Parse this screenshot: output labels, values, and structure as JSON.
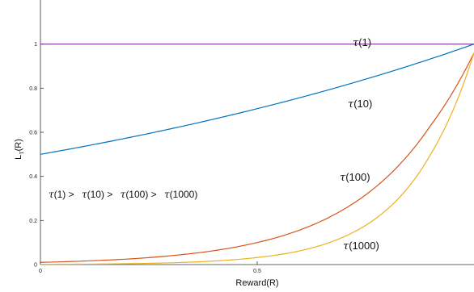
{
  "chart_data": {
    "type": "line",
    "xlabel": "Reward(R)",
    "ylabel": "L",
    "ylabel_sub": "τ",
    "ylabel_suffix": "(R)",
    "xlim": [
      0,
      1
    ],
    "ylim": [
      0,
      1.2
    ],
    "x_ticks": [
      {
        "value": 0,
        "label": "0"
      },
      {
        "value": 0.5,
        "label": "0.5"
      }
    ],
    "y_ticks": [
      {
        "value": 0,
        "label": "0"
      },
      {
        "value": 0.2,
        "label": "0.2"
      },
      {
        "value": 0.4,
        "label": "0.4"
      },
      {
        "value": 0.6,
        "label": "0.6"
      },
      {
        "value": 0.8,
        "label": "0.8"
      },
      {
        "value": 1,
        "label": "1"
      }
    ],
    "grid": false,
    "series": [
      {
        "name": "τ(1)",
        "tau": 1,
        "color": "#7E2F8E",
        "x": [
          0,
          0.1,
          0.2,
          0.3,
          0.4,
          0.5,
          0.6,
          0.7,
          0.8,
          0.9,
          1
        ],
        "y": [
          1,
          1,
          1,
          1,
          1,
          1,
          1,
          1,
          1,
          1,
          1
        ]
      },
      {
        "name": "τ(10)",
        "tau": 10,
        "color": "#0072BD",
        "x": [
          0,
          0.1,
          0.2,
          0.3,
          0.4,
          0.5,
          0.6,
          0.7,
          0.8,
          0.9,
          1
        ],
        "y": [
          0.5,
          0.535,
          0.573,
          0.614,
          0.659,
          0.707,
          0.758,
          0.812,
          0.871,
          0.933,
          1
        ]
      },
      {
        "name": "τ(100)",
        "tau": 100,
        "color": "#D95319",
        "x": [
          0,
          0.1,
          0.2,
          0.3,
          0.4,
          0.5,
          0.6,
          0.7,
          0.8,
          0.9,
          1
        ],
        "y": [
          0.01,
          0.016,
          0.025,
          0.04,
          0.063,
          0.1,
          0.158,
          0.251,
          0.398,
          0.631,
          0.96
        ]
      },
      {
        "name": "τ(1000)",
        "tau": 1000,
        "color": "#EDB120",
        "x": [
          0,
          0.1,
          0.2,
          0.3,
          0.4,
          0.5,
          0.6,
          0.7,
          0.8,
          0.9,
          1
        ],
        "y": [
          0.001,
          0.002,
          0.004,
          0.008,
          0.016,
          0.032,
          0.063,
          0.126,
          0.251,
          0.5,
          0.96
        ]
      }
    ],
    "annotations": {
      "tau1": {
        "sym": "τ",
        "text": "(1)"
      },
      "tau10": {
        "sym": "τ",
        "text": "(10)"
      },
      "tau100": {
        "sym": "τ",
        "text": "(100)"
      },
      "tau1000": {
        "sym": "τ",
        "text": "(1000)"
      },
      "ordering": [
        {
          "sym": "τ",
          "text": "(1) >"
        },
        {
          "sym": "τ",
          "text": "(10) >"
        },
        {
          "sym": "τ",
          "text": "(100) >"
        },
        {
          "sym": "τ",
          "text": "(1000)"
        }
      ]
    }
  }
}
